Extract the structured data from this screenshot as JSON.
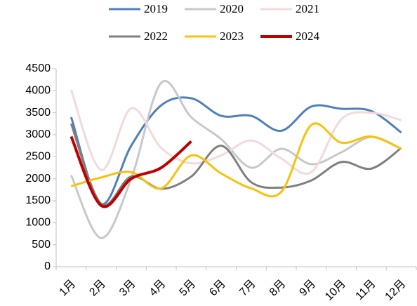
{
  "chart_data": {
    "type": "line",
    "categories": [
      "1月",
      "2月",
      "3月",
      "4月",
      "5月",
      "6月",
      "7月",
      "8月",
      "9月",
      "10月",
      "11月",
      "12月"
    ],
    "series": [
      {
        "name": "2019",
        "color": "#4f7fbc",
        "values": [
          3400,
          1430,
          2750,
          3670,
          3830,
          3430,
          3430,
          3090,
          3640,
          3590,
          3540,
          3050
        ]
      },
      {
        "name": "2020",
        "color": "#c8c8c8",
        "values": [
          2080,
          650,
          2000,
          4180,
          3400,
          2900,
          2250,
          2680,
          2330,
          2600,
          2950,
          2680
        ]
      },
      {
        "name": "2021",
        "color": "#f2dada",
        "values": [
          4020,
          2200,
          3600,
          2700,
          2350,
          2530,
          2870,
          2460,
          2150,
          3350,
          3500,
          3330
        ]
      },
      {
        "name": "2022",
        "color": "#7f7f7f",
        "values": [
          3250,
          1430,
          2050,
          1770,
          2050,
          2750,
          1920,
          1800,
          1960,
          2380,
          2230,
          2700
        ]
      },
      {
        "name": "2023",
        "color": "#f7c20e",
        "values": [
          1830,
          2030,
          2150,
          1780,
          2530,
          2120,
          1780,
          1700,
          3220,
          2820,
          2960,
          2680
        ]
      },
      {
        "name": "2024",
        "color": "#c00000",
        "values": [
          2960,
          1390,
          2000,
          2250,
          2850,
          null,
          null,
          null,
          null,
          null,
          null,
          null
        ]
      }
    ],
    "ylim": [
      0,
      4500
    ],
    "yticks": [
      0,
      500,
      1000,
      1500,
      2000,
      2500,
      3000,
      3500,
      4000,
      4500
    ]
  }
}
